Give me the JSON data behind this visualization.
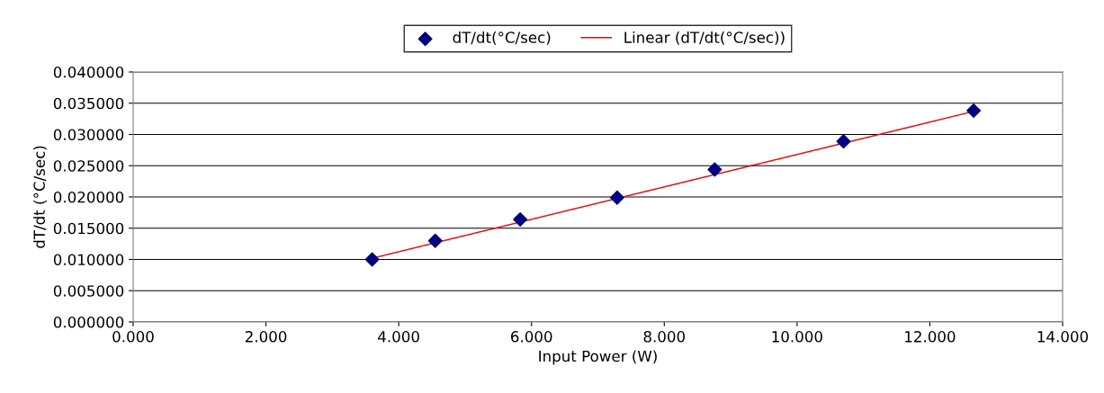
{
  "chart_data": {
    "type": "scatter",
    "xlabel": "Input Power (W)",
    "ylabel": "dT/dt (°C/sec)",
    "xlim": [
      0,
      14
    ],
    "ylim": [
      0,
      0.04
    ],
    "xticks": [
      {
        "value": 0,
        "label": "0.000"
      },
      {
        "value": 2,
        "label": "2.000"
      },
      {
        "value": 4,
        "label": "4.000"
      },
      {
        "value": 6,
        "label": "6.000"
      },
      {
        "value": 8,
        "label": "8.000"
      },
      {
        "value": 10,
        "label": "10.000"
      },
      {
        "value": 12,
        "label": "12.000"
      },
      {
        "value": 14,
        "label": "14.000"
      }
    ],
    "yticks": [
      {
        "value": 0,
        "label": "0.000000"
      },
      {
        "value": 0.005,
        "label": "0.005000"
      },
      {
        "value": 0.01,
        "label": "0.010000"
      },
      {
        "value": 0.015,
        "label": "0.015000"
      },
      {
        "value": 0.02,
        "label": "0.020000"
      },
      {
        "value": 0.025,
        "label": "0.025000"
      },
      {
        "value": 0.03,
        "label": "0.030000"
      },
      {
        "value": 0.035,
        "label": "0.035000"
      },
      {
        "value": 0.04,
        "label": "0.040000"
      }
    ],
    "grid": "y",
    "legend": "top",
    "series": [
      {
        "name": "dT/dt(°C/sec)",
        "marker": "diamond",
        "color": "#000080",
        "x": [
          3.6,
          4.55,
          5.83,
          7.29,
          8.76,
          10.7,
          12.66
        ],
        "values": [
          0.01,
          0.013,
          0.0164,
          0.0199,
          0.0244,
          0.0289,
          0.0338
        ]
      },
      {
        "name": "Linear (dT/dt(°C/sec))",
        "type": "line",
        "marker": "none",
        "line_style": "solid",
        "color": "#ff0000",
        "x": [
          3.6,
          12.66
        ],
        "values": [
          0.0102,
          0.0337
        ]
      }
    ]
  }
}
